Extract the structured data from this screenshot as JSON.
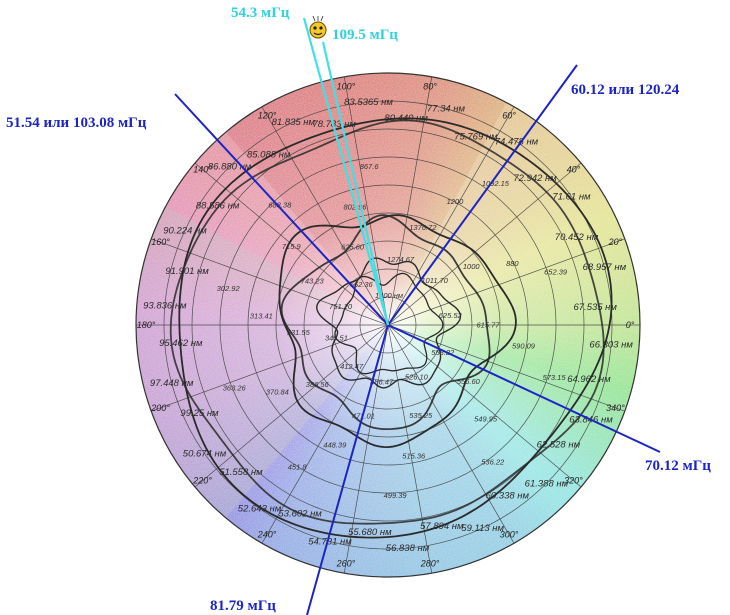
{
  "annotations": {
    "top_cyan_1": "54.3 мГц",
    "top_cyan_2": "109.5 мГц",
    "upper_left_blue": "51.54 или 103.08 мГц",
    "upper_right_blue": "60.12 или 120.24",
    "right_blue": "70.12 мГц",
    "bottom_blue": "81.79 мГц"
  },
  "angle_labels": [
    "0°",
    "20°",
    "40°",
    "60°",
    "80°",
    "100°",
    "120°",
    "140°",
    "160°",
    "180°",
    "200°",
    "220°",
    "240°",
    "260°",
    "280°",
    "300°",
    "320°",
    "340°"
  ],
  "rim_labels": [
    "83.5365 нм",
    "80.440 нм",
    "77.34 нм",
    "75.769 нм",
    "74.478 нм",
    "72.942 нм",
    "71.61 нм",
    "70.452 нм",
    "68.957 нм",
    "67.535 нм",
    "66.303 нм",
    "64.962 нм",
    "63.846 нм",
    "62.528 нм",
    "61.388 нм",
    "60.338 нм",
    "59.113 нм",
    "57.894 нм",
    "56.838 нм",
    "55.680 нм",
    "54.731 нм",
    "53.602 нм",
    "52.643 нм",
    "51.558 нм",
    "50.674 нм",
    "99.25 нм",
    "97.448 нм",
    "95.462 нм",
    "93.836 нм",
    "91.901 нм",
    "90.224 нм",
    "88.586 нм",
    "86.880 нм",
    "85.088 нм",
    "81.835 нм",
    "78.783 нм"
  ],
  "inner_labels": [
    "1400 нм",
    "1274.67",
    "1376.72",
    "1200",
    "1092.15",
    "1011.70",
    "1000",
    "880",
    "652.39",
    "625.52",
    "615.77",
    "590.09",
    "573.15",
    "558.22",
    "556.60",
    "549.95",
    "536.22",
    "526.10",
    "535.25",
    "515.36",
    "499.39",
    "486.47",
    "471.01",
    "448.39",
    "451.8",
    "412.47",
    "386.56",
    "370.84",
    "363.26",
    "345.51",
    "331.55",
    "313.41",
    "302.92",
    "751.20",
    "743.23",
    "715.9",
    "688.38",
    "662.36",
    "625.60",
    "802.96",
    "867.6"
  ],
  "colors": {
    "blue_line": "#1d24c6",
    "cyan_line": "#3fe0e6",
    "curve": "#2a2a2a",
    "grid": "#3a3a3a"
  },
  "icons": {
    "smiley": "smiley-face-icon"
  }
}
